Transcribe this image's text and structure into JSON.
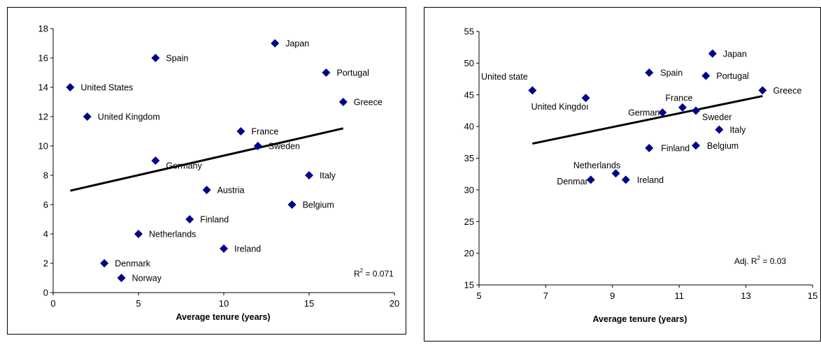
{
  "colors": {
    "marker": "#00008B",
    "trend": "#000000",
    "frame": "#000000",
    "axis": "#000000"
  },
  "chart_data": [
    {
      "type": "scatter",
      "title": "",
      "xlabel": "Average tenure (years)",
      "ylabel": "",
      "xlim": [
        0,
        20
      ],
      "ylim": [
        0,
        18
      ],
      "xticks": [
        0,
        5,
        10,
        15,
        20
      ],
      "xtick_labels": [
        "0",
        "5",
        "10",
        "15",
        "20"
      ],
      "yticks": [
        0,
        2,
        4,
        6,
        8,
        10,
        12,
        14,
        16,
        18
      ],
      "ytick_labels": [
        "0",
        "2",
        "4",
        "6",
        "8",
        "10",
        "12",
        "14",
        "16",
        "18"
      ],
      "grid": false,
      "legend": "none",
      "points": [
        {
          "label": "United States",
          "x": 1,
          "y": 14
        },
        {
          "label": "United Kingdom",
          "x": 2,
          "y": 12
        },
        {
          "label": "Spain",
          "x": 6,
          "y": 16
        },
        {
          "label": "Japan",
          "x": 13,
          "y": 17
        },
        {
          "label": "Portugal",
          "x": 16,
          "y": 15
        },
        {
          "label": "Greece",
          "x": 17,
          "y": 13
        },
        {
          "label": "France",
          "x": 11,
          "y": 11
        },
        {
          "label": "Sweden",
          "x": 12,
          "y": 10
        },
        {
          "label": "Germany",
          "x": 6,
          "y": 9
        },
        {
          "label": "Italy",
          "x": 15,
          "y": 8
        },
        {
          "label": "Austria",
          "x": 9,
          "y": 7
        },
        {
          "label": "Belgium",
          "x": 14,
          "y": 6
        },
        {
          "label": "Finland",
          "x": 8,
          "y": 5
        },
        {
          "label": "Netherlands",
          "x": 5,
          "y": 4
        },
        {
          "label": "Ireland",
          "x": 10,
          "y": 3
        },
        {
          "label": "Denmark",
          "x": 3,
          "y": 2
        },
        {
          "label": "Norway",
          "x": 4,
          "y": 1
        }
      ],
      "trendline": {
        "x": [
          1,
          17
        ],
        "y": [
          6.95,
          11.2
        ]
      },
      "annotation": {
        "prefix": "R",
        "sup": "2",
        "suffix": " = 0.071"
      }
    },
    {
      "type": "scatter",
      "title": "",
      "xlabel": "Average tenure (years)",
      "ylabel": "",
      "xlim": [
        5,
        15
      ],
      "ylim": [
        15,
        55
      ],
      "xticks": [
        5,
        7,
        9,
        11,
        13,
        15
      ],
      "xtick_labels": [
        "5",
        "7",
        "9",
        "11",
        "13",
        "15"
      ],
      "yticks": [
        15,
        20,
        25,
        30,
        35,
        40,
        45,
        50,
        55
      ],
      "ytick_labels": [
        "15",
        "20",
        "25",
        "30",
        "35",
        "40",
        "45",
        "50",
        "55"
      ],
      "grid": false,
      "legend": "none",
      "points": [
        {
          "label": "United state",
          "x": 6.6,
          "y": 45.7
        },
        {
          "label": "United Kingdoı",
          "x": 8.2,
          "y": 44.5
        },
        {
          "label": "Spain",
          "x": 10.1,
          "y": 48.5
        },
        {
          "label": "Japan",
          "x": 12.0,
          "y": 51.5
        },
        {
          "label": "Portugal",
          "x": 11.8,
          "y": 48.0
        },
        {
          "label": "Greece",
          "x": 13.5,
          "y": 45.7
        },
        {
          "label": "France",
          "x": 11.1,
          "y": 43.0
        },
        {
          "label": "German",
          "x": 10.5,
          "y": 42.2
        },
        {
          "label": "Sweder",
          "x": 11.5,
          "y": 42.5
        },
        {
          "label": "Italy",
          "x": 12.2,
          "y": 39.5
        },
        {
          "label": "Finland",
          "x": 10.1,
          "y": 36.6
        },
        {
          "label": "Belgium",
          "x": 11.5,
          "y": 37.0
        },
        {
          "label": "Netherlands",
          "x": 9.1,
          "y": 32.6
        },
        {
          "label": "Ireland",
          "x": 9.4,
          "y": 31.6
        },
        {
          "label": "Denmar",
          "x": 8.35,
          "y": 31.6
        }
      ],
      "trendline": {
        "x": [
          6.6,
          13.5
        ],
        "y": [
          37.3,
          44.8
        ]
      },
      "annotation": {
        "prefix": "Adj. R",
        "sup": "2",
        "suffix": " = 0.03"
      }
    }
  ]
}
